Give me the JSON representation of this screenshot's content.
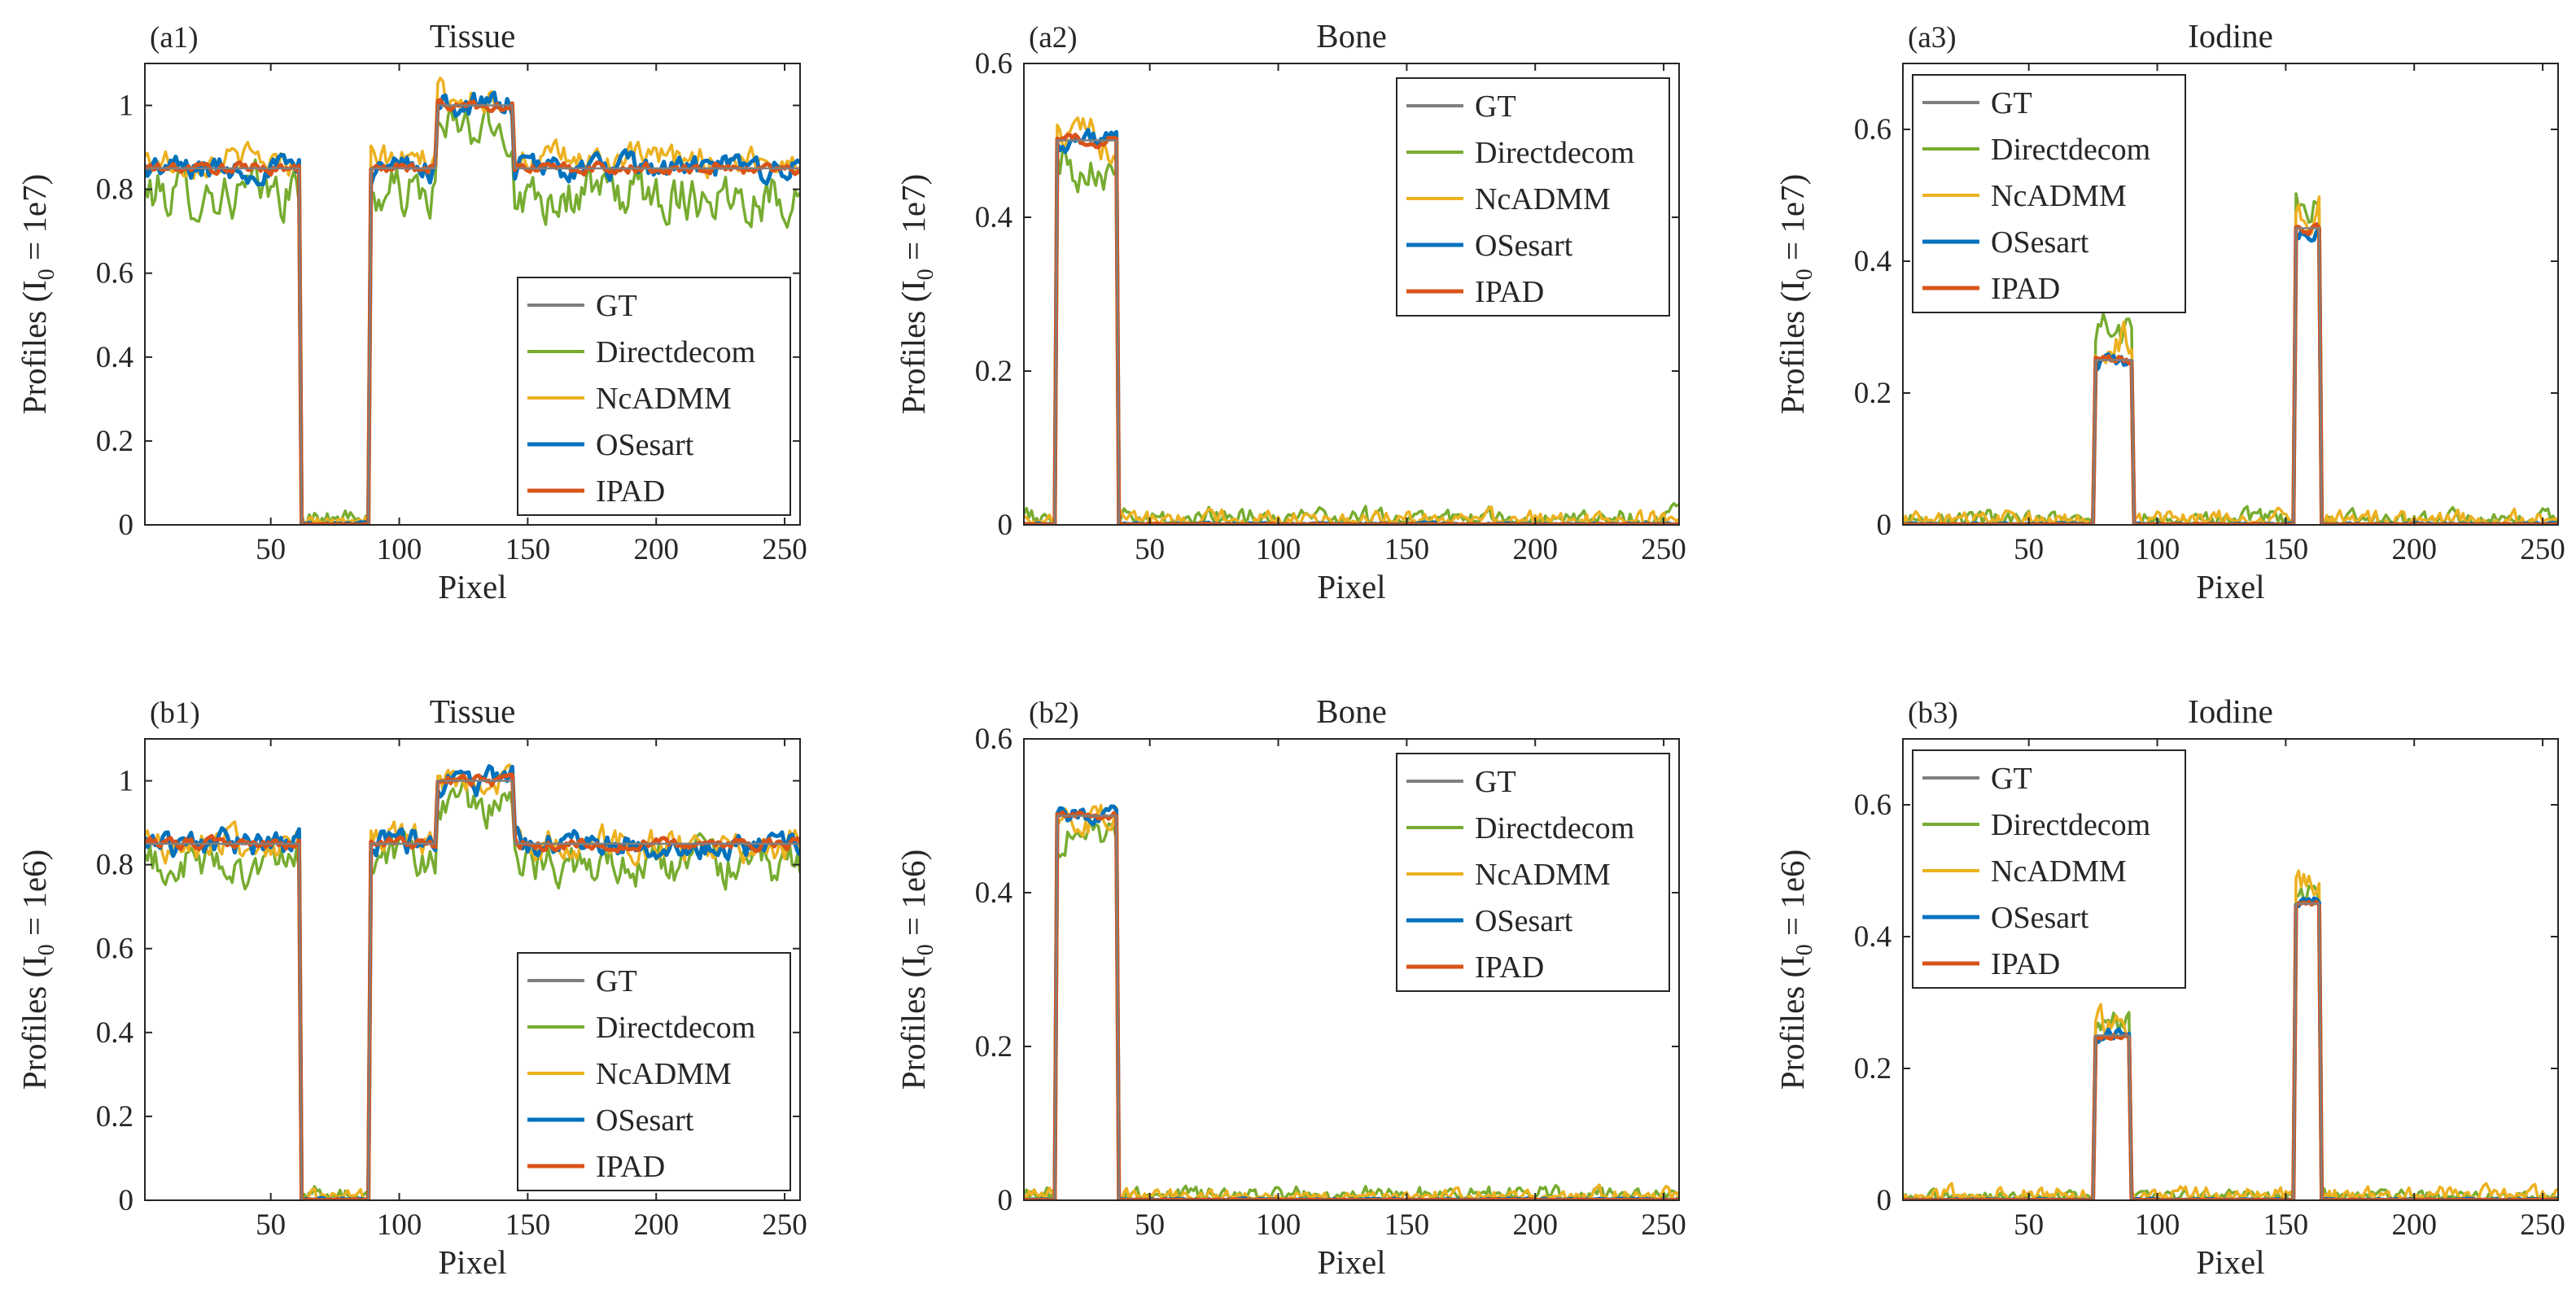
{
  "figure": {
    "xlabel": "Pixel",
    "legend_entries": [
      "GT",
      "Directdecom",
      "NcADMM",
      "OSesart",
      "IPAD"
    ],
    "series_colors": {
      "GT": "#7f7f7f",
      "Directdecom": "#77ac30",
      "NcADMM": "#edb120",
      "OSesart": "#0072bd",
      "IPAD": "#d95319"
    }
  },
  "chart_data": [
    {
      "id": "a1",
      "tag": "(a1)",
      "title": "Tissue",
      "type": "line",
      "xlabel": "Pixel",
      "ylabel": "Profiles (I",
      "ylabel_sub": "0",
      "ylabel_tail": " = 1e7)",
      "xlim": [
        1,
        256
      ],
      "ylim": [
        0,
        1.1
      ],
      "xticks": [
        50,
        100,
        150,
        200,
        250
      ],
      "xtick_labels": [
        "50",
        "100",
        "150",
        "200",
        "250"
      ],
      "yticks": [
        0,
        0.2,
        0.4,
        0.6,
        0.8,
        1
      ],
      "ytick_labels": [
        "0",
        "0.2",
        "0.4",
        "0.6",
        "0.8",
        "1"
      ],
      "legend_position": "bottom-right",
      "gt_segments": [
        [
          1,
          62,
          0.85
        ],
        [
          62,
          89,
          0
        ],
        [
          89,
          115,
          0.85
        ],
        [
          115,
          145,
          1.0
        ],
        [
          145,
          256,
          0.85
        ]
      ],
      "noise": {
        "Directdecom": 0.07,
        "NcADMM": 0.04,
        "OSesart": 0.035,
        "IPAD": 0.015
      },
      "bias": {
        "Directdecom": -0.06,
        "NcADMM": 0.02,
        "OSesart": 0,
        "IPAD": 0
      }
    },
    {
      "id": "a2",
      "tag": "(a2)",
      "title": "Bone",
      "type": "line",
      "xlabel": "Pixel",
      "ylabel": "Profiles (I",
      "ylabel_sub": "0",
      "ylabel_tail": " = 1e7)",
      "xlim": [
        1,
        256
      ],
      "ylim": [
        0,
        0.6
      ],
      "xticks": [
        50,
        100,
        150,
        200,
        250
      ],
      "xtick_labels": [
        "50",
        "100",
        "150",
        "200",
        "250"
      ],
      "yticks": [
        0,
        0.2,
        0.4,
        0.6
      ],
      "ytick_labels": [
        "0",
        "0.2",
        "0.4",
        "0.6"
      ],
      "legend_position": "top-right",
      "gt_segments": [
        [
          1,
          14,
          0
        ],
        [
          14,
          38,
          0.5
        ],
        [
          38,
          256,
          0
        ]
      ],
      "noise": {
        "Directdecom": 0.035,
        "NcADMM": 0.03,
        "OSesart": 0.015,
        "IPAD": 0.008
      },
      "bias": {
        "Directdecom": -0.03,
        "NcADMM": 0,
        "OSesart": 0,
        "IPAD": 0
      }
    },
    {
      "id": "a3",
      "tag": "(a3)",
      "title": "Iodine",
      "type": "line",
      "xlabel": "Pixel",
      "ylabel": "Profiles (I",
      "ylabel_sub": "0",
      "ylabel_tail": " = 1e7)",
      "xlim": [
        1,
        256
      ],
      "ylim": [
        0,
        0.7
      ],
      "xticks": [
        50,
        100,
        150,
        200,
        250
      ],
      "xtick_labels": [
        "50",
        "100",
        "150",
        "200",
        "250"
      ],
      "yticks": [
        0,
        0.2,
        0.4,
        0.6
      ],
      "ytick_labels": [
        "0",
        "0.2",
        "0.4",
        "0.6"
      ],
      "legend_position": "top-left",
      "gt_segments": [
        [
          1,
          76,
          0
        ],
        [
          76,
          91,
          0.25
        ],
        [
          91,
          154,
          0
        ],
        [
          154,
          164,
          0.45
        ],
        [
          164,
          256,
          0
        ]
      ],
      "noise": {
        "Directdecom": 0.035,
        "NcADMM": 0.035,
        "OSesart": 0.015,
        "IPAD": 0.008
      },
      "bias": {
        "Directdecom": 0.04,
        "NcADMM": 0.03,
        "OSesart": 0,
        "IPAD": 0
      }
    },
    {
      "id": "b1",
      "tag": "(b1)",
      "title": "Tissue",
      "type": "line",
      "xlabel": "Pixel",
      "ylabel": "Profiles (I",
      "ylabel_sub": "0",
      "ylabel_tail": " = 1e6)",
      "xlim": [
        1,
        256
      ],
      "ylim": [
        0,
        1.1
      ],
      "xticks": [
        50,
        100,
        150,
        200,
        250
      ],
      "xtick_labels": [
        "50",
        "100",
        "150",
        "200",
        "250"
      ],
      "yticks": [
        0,
        0.2,
        0.4,
        0.6,
        0.8,
        1
      ],
      "ytick_labels": [
        "0",
        "0.2",
        "0.4",
        "0.6",
        "0.8",
        "1"
      ],
      "legend_position": "bottom-right",
      "gt_segments": [
        [
          1,
          62,
          0.85
        ],
        [
          62,
          89,
          0
        ],
        [
          89,
          115,
          0.85
        ],
        [
          115,
          145,
          1.0
        ],
        [
          145,
          256,
          0.85
        ]
      ],
      "noise": {
        "Directdecom": 0.06,
        "NcADMM": 0.045,
        "OSesart": 0.035,
        "IPAD": 0.015
      },
      "bias": {
        "Directdecom": -0.05,
        "NcADMM": 0,
        "OSesart": 0,
        "IPAD": 0
      }
    },
    {
      "id": "b2",
      "tag": "(b2)",
      "title": "Bone",
      "type": "line",
      "xlabel": "Pixel",
      "ylabel": "Profiles (I",
      "ylabel_sub": "0",
      "ylabel_tail": " = 1e6)",
      "xlim": [
        1,
        256
      ],
      "ylim": [
        0,
        0.6
      ],
      "xticks": [
        50,
        100,
        150,
        200,
        250
      ],
      "xtick_labels": [
        "50",
        "100",
        "150",
        "200",
        "250"
      ],
      "yticks": [
        0,
        0.2,
        0.4,
        0.6
      ],
      "ytick_labels": [
        "0",
        "0.2",
        "0.4",
        "0.6"
      ],
      "legend_position": "top-right",
      "gt_segments": [
        [
          1,
          14,
          0
        ],
        [
          14,
          38,
          0.5
        ],
        [
          38,
          256,
          0
        ]
      ],
      "noise": {
        "Directdecom": 0.03,
        "NcADMM": 0.025,
        "OSesart": 0.012,
        "IPAD": 0.006
      },
      "bias": {
        "Directdecom": -0.02,
        "NcADMM": 0,
        "OSesart": 0,
        "IPAD": 0
      }
    },
    {
      "id": "b3",
      "tag": "(b3)",
      "title": "Iodine",
      "type": "line",
      "xlabel": "Pixel",
      "ylabel": "Profiles (I",
      "ylabel_sub": "0",
      "ylabel_tail": " = 1e6)",
      "xlim": [
        1,
        256
      ],
      "ylim": [
        0,
        0.7
      ],
      "xticks": [
        50,
        100,
        150,
        200,
        250
      ],
      "xtick_labels": [
        "50",
        "100",
        "150",
        "200",
        "250"
      ],
      "yticks": [
        0,
        0.2,
        0.4,
        0.6
      ],
      "ytick_labels": [
        "0",
        "0.2",
        "0.4",
        "0.6"
      ],
      "legend_position": "top-left",
      "gt_segments": [
        [
          1,
          76,
          0
        ],
        [
          76,
          90,
          0.25
        ],
        [
          90,
          154,
          0
        ],
        [
          154,
          164,
          0.45
        ],
        [
          164,
          256,
          0
        ]
      ],
      "noise": {
        "Directdecom": 0.025,
        "NcADMM": 0.035,
        "OSesart": 0.012,
        "IPAD": 0.006
      },
      "bias": {
        "Directdecom": 0.02,
        "NcADMM": 0.02,
        "OSesart": 0,
        "IPAD": 0
      }
    }
  ]
}
